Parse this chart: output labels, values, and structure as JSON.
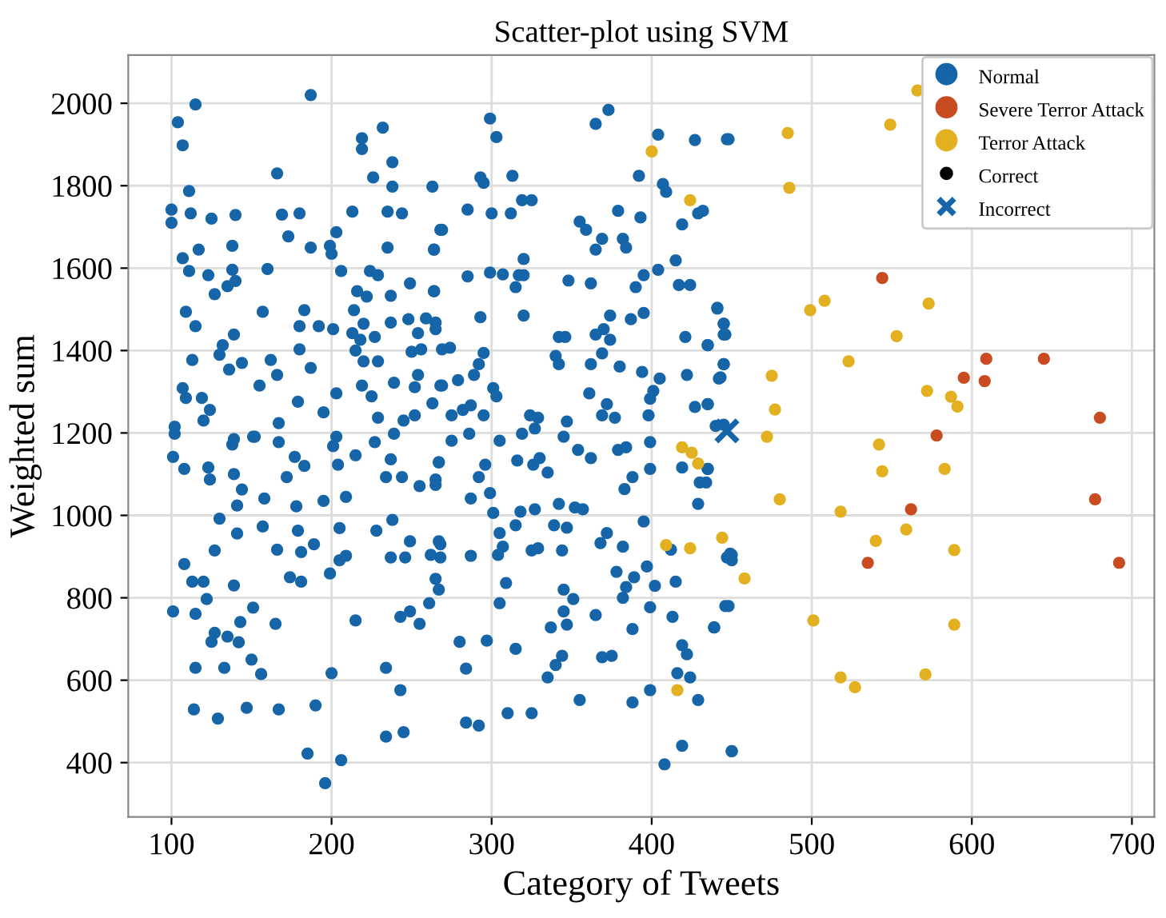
{
  "chart_data": {
    "type": "scatter",
    "title": "Scatter-plot using SVM",
    "xlabel": "Category of Tweets",
    "ylabel": "Weighted sum",
    "xlim": [
      73,
      714
    ],
    "ylim": [
      268,
      2117
    ],
    "xticks": [
      100,
      200,
      300,
      400,
      500,
      600,
      700
    ],
    "yticks": [
      400,
      600,
      800,
      1000,
      1200,
      1400,
      1600,
      1800,
      2000
    ],
    "grid": true,
    "legend": "top right",
    "marker": "circle",
    "annotations": [
      "Correct"
    ],
    "series": [
      {
        "name": "Normal",
        "color": "#1565a8",
        "x": [
          104,
          115,
          107,
          187,
          111,
          100,
          100,
          112,
          125,
          140,
          166,
          169,
          180,
          173,
          187,
          107,
          117,
          111,
          123,
          127,
          138,
          138,
          135,
          140,
          160,
          109,
          115,
          113,
          139,
          132,
          130,
          136,
          144,
          157,
          155,
          162,
          166,
          180,
          183,
          192,
          201,
          180,
          187,
          179,
          203,
          195,
          107,
          109,
          119,
          124,
          120,
          102,
          152,
          167,
          199,
          203,
          200,
          206,
          213,
          219,
          219,
          226,
          232,
          238,
          238,
          235,
          244,
          235,
          224,
          229,
          237,
          216,
          222,
          214,
          220,
          237,
          249,
          263,
          264,
          269,
          264,
          248,
          259,
          254,
          265,
          213,
          218,
          227,
          215,
          220,
          229,
          250,
          256,
          219,
          225,
          239,
          252,
          254,
          268,
          229,
          239,
          245,
          252,
          263,
          203,
          139,
          299,
          303,
          373,
          365,
          404,
          427,
          448,
          293,
          295,
          313,
          319,
          325,
          392,
          407,
          409,
          285,
          300,
          312,
          379,
          393,
          419,
          429,
          355,
          359,
          369,
          365,
          382,
          384,
          268,
          264,
          299,
          307,
          317,
          320,
          315,
          320,
          285,
          348,
          362,
          390,
          395,
          404,
          415,
          417,
          424,
          264,
          293,
          320,
          374,
          387,
          395,
          441,
          445,
          445,
          265,
          269,
          274,
          295,
          292,
          289,
          279,
          269,
          342,
          346,
          340,
          342,
          365,
          370,
          374,
          362,
          369,
          380,
          394,
          405,
          401,
          399,
          421,
          435,
          445,
          442,
          422,
          361,
          372,
          377,
          369,
          301,
          303,
          282,
          287,
          295,
          324,
          329,
          347,
          275,
          427,
          435,
          445,
          398,
          102,
          101,
          108,
          138,
          123,
          124,
          139,
          144,
          151,
          158,
          167,
          177,
          183,
          172,
          201,
          204,
          215,
          209,
          195,
          178,
          141,
          130,
          141,
          157,
          179,
          181,
          189,
          166,
          127,
          108,
          113,
          120,
          122,
          101,
          115,
          139,
          151,
          143,
          127,
          135,
          142,
          125,
          150,
          156,
          115,
          133,
          114,
          129,
          147,
          167,
          190,
          185,
          206,
          196,
          200,
          165,
          174,
          181,
          199,
          205,
          209,
          215,
          205,
          228,
          227,
          234,
          237,
          244,
          238,
          249,
          237,
          246,
          234,
          243,
          234,
          245,
          243,
          249,
          255,
          255,
          265,
          267,
          262,
          265,
          261,
          267,
          268,
          275,
          286,
          267,
          265,
          292,
          296,
          305,
          319,
          327,
          316,
          326,
          330,
          335,
          345,
          354,
          362,
          379,
          384,
          383,
          388,
          399,
          399,
          419,
          430,
          429,
          435,
          287,
          299,
          301,
          315,
          318,
          327,
          342,
          352,
          357,
          339,
          347,
          305,
          307,
          304,
          325,
          329,
          344,
          368,
          372,
          382,
          395,
          412,
          415,
          402,
          397,
          389,
          384,
          382,
          378,
          267,
          268,
          287,
          309,
          305,
          345,
          351,
          345,
          347,
          365,
          337,
          388,
          399,
          413,
          419,
          422,
          416,
          424,
          429,
          439,
          448,
          447,
          450,
          369,
          375,
          344,
          340,
          335,
          315,
          297,
          280,
          284,
          284,
          292,
          310,
          325,
          355,
          388,
          399,
          419,
          408,
          450,
          447,
          432,
          441,
          445,
          446,
          435,
          445,
          443,
          435,
          440,
          435,
          434,
          449,
          450,
          446,
          439,
          450
        ],
        "values": [
          1954,
          1997,
          1898,
          2020,
          1787,
          1742,
          1710,
          1733,
          1720,
          1729,
          1830,
          1730,
          1733,
          1677,
          1650,
          1624,
          1645,
          1593,
          1583,
          1537,
          1654,
          1596,
          1556,
          1569,
          1598,
          1494,
          1459,
          1377,
          1439,
          1413,
          1390,
          1354,
          1370,
          1494,
          1315,
          1377,
          1341,
          1459,
          1498,
          1459,
          1452,
          1403,
          1358,
          1276,
          1296,
          1250,
          1309,
          1285,
          1285,
          1256,
          1230,
          1215,
          1191,
          1224,
          1654,
          1687,
          1635,
          1593,
          1737,
          1915,
          1889,
          1820,
          1941,
          1857,
          1798,
          1737,
          1733,
          1650,
          1593,
          1583,
          1533,
          1544,
          1531,
          1498,
          1465,
          1468,
          1563,
          1798,
          1645,
          1693,
          1544,
          1476,
          1478,
          1442,
          1468,
          1442,
          1426,
          1433,
          1400,
          1374,
          1374,
          1397,
          1403,
          1315,
          1289,
          1322,
          1311,
          1341,
          1315,
          1237,
          1198,
          1230,
          1243,
          1272,
          1191,
          1185,
          1963,
          1918,
          1984,
          1950,
          1924,
          1911,
          1913,
          1820,
          1807,
          1824,
          1765,
          1765,
          1824,
          1804,
          1785,
          1742,
          1733,
          1733,
          1739,
          1723,
          1706,
          1733,
          1713,
          1693,
          1671,
          1645,
          1671,
          1650,
          1693,
          1645,
          1589,
          1585,
          1583,
          1622,
          1554,
          1583,
          1580,
          1570,
          1563,
          1554,
          1583,
          1596,
          1619,
          1559,
          1559,
          1544,
          1481,
          1485,
          1485,
          1476,
          1491,
          1504,
          1465,
          1439,
          1452,
          1403,
          1407,
          1394,
          1367,
          1341,
          1328,
          1315,
          1433,
          1433,
          1387,
          1367,
          1439,
          1452,
          1426,
          1367,
          1393,
          1361,
          1348,
          1332,
          1302,
          1283,
          1433,
          1413,
          1367,
          1332,
          1341,
          1296,
          1270,
          1237,
          1243,
          1309,
          1289,
          1256,
          1267,
          1243,
          1243,
          1237,
          1228,
          1243,
          1263,
          1270,
          1220,
          1243,
          1198,
          1142,
          1113,
          1172,
          1116,
          1087,
          1100,
          1063,
          1191,
          1041,
          1178,
          1142,
          1120,
          1093,
          1168,
          1123,
          1146,
          1045,
          1035,
          1022,
          1024,
          992,
          956,
          973,
          963,
          911,
          930,
          917,
          915,
          882,
          839,
          839,
          797,
          767,
          761,
          830,
          776,
          741,
          715,
          706,
          692,
          693,
          650,
          615,
          630,
          630,
          529,
          507,
          533,
          529,
          539,
          422,
          406,
          350,
          617,
          737,
          850,
          839,
          859,
          891,
          902,
          745,
          969,
          963,
          1178,
          1093,
          1136,
          1093,
          989,
          937,
          898,
          898,
          630,
          576,
          463,
          474,
          754,
          767,
          737,
          1071,
          1074,
          1129,
          904,
          846,
          787,
          820,
          930,
          1181,
          1198,
          1129,
          1087,
          1093,
          1123,
          1181,
          1198,
          1211,
          1133,
          1123,
          1139,
          1104,
          1191,
          1159,
          1139,
          1159,
          1165,
          1064,
          1093,
          1178,
          1113,
          1116,
          1080,
          1028,
          1113,
          1041,
          1054,
          1006,
          976,
          1009,
          1015,
          1028,
          1019,
          1015,
          976,
          970,
          957,
          924,
          904,
          915,
          920,
          915,
          933,
          957,
          924,
          985,
          917,
          839,
          829,
          876,
          850,
          826,
          800,
          863,
          937,
          898,
          902,
          836,
          787,
          820,
          797,
          767,
          735,
          758,
          728,
          724,
          777,
          754,
          685,
          663,
          617,
          607,
          552,
          728,
          780,
          898,
          904,
          656,
          659,
          659,
          637,
          607,
          676,
          696,
          693,
          628,
          497,
          490,
          520,
          520,
          552,
          546,
          576,
          441,
          396,
          428,
          1913,
          1739,
          1502,
          1465,
          1439,
          1413,
          1367,
          1335,
          1270,
          1217,
          1113,
          1080,
          907,
          891,
          780,
          728,
          428
        ]
      },
      {
        "name": "Severe Terror Attack",
        "color": "#c84b22",
        "x": [
          544,
          609,
          645,
          595,
          608,
          680,
          578,
          677,
          562,
          535,
          692
        ],
        "values": [
          1576,
          1380,
          1380,
          1334,
          1326,
          1237,
          1194,
          1039,
          1015,
          885,
          885
        ]
      },
      {
        "name": "Terror Attack",
        "color": "#e2b021",
        "x": [
          400,
          424,
          566,
          485,
          549,
          486,
          499,
          508,
          573,
          553,
          523,
          572,
          587,
          591,
          475,
          477,
          472,
          542,
          544,
          583,
          480,
          518,
          559,
          540,
          589,
          444,
          458,
          501,
          589,
          571,
          518,
          527,
          419,
          425,
          429,
          409,
          424,
          416
        ],
        "values": [
          1883,
          1765,
          2031,
          1928,
          1948,
          1795,
          1498,
          1521,
          1514,
          1435,
          1374,
          1302,
          1288,
          1264,
          1339,
          1257,
          1191,
          1172,
          1107,
          1113,
          1039,
          1009,
          966,
          938,
          916,
          946,
          847,
          745,
          735,
          614,
          607,
          583,
          1165,
          1152,
          1126,
          928,
          920,
          576
        ]
      },
      {
        "name": "Incorrect",
        "color": "#1565a8",
        "marker": "cross",
        "x": [
          447
        ],
        "values": [
          1205
        ]
      }
    ]
  }
}
